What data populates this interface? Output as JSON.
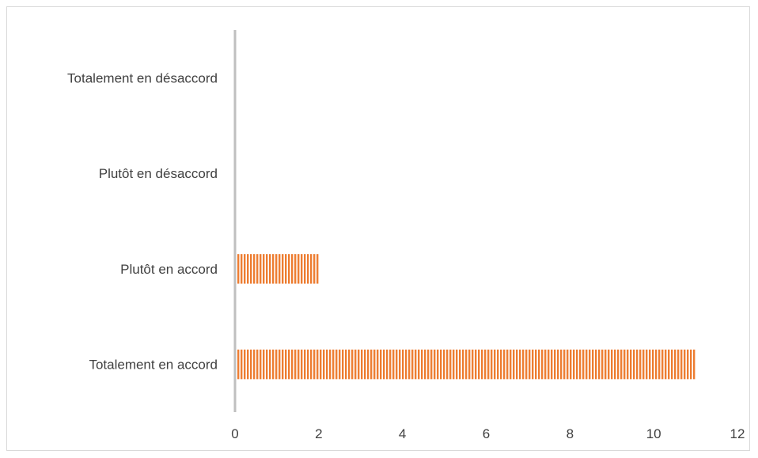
{
  "chart_data": {
    "type": "bar",
    "orientation": "horizontal",
    "categories": [
      "Totalement en désaccord",
      "Plutôt en désaccord",
      "Plutôt en accord",
      "Totalement en accord"
    ],
    "values": [
      0,
      0,
      2,
      11
    ],
    "xlim": [
      0,
      12
    ],
    "xticks": [
      "0",
      "2",
      "4",
      "6",
      "8",
      "10",
      "12"
    ],
    "grid": false,
    "bar_color": "#ed7d31",
    "bar_pattern": "vertical-stripes",
    "axis_color": "#bfbfbf"
  }
}
